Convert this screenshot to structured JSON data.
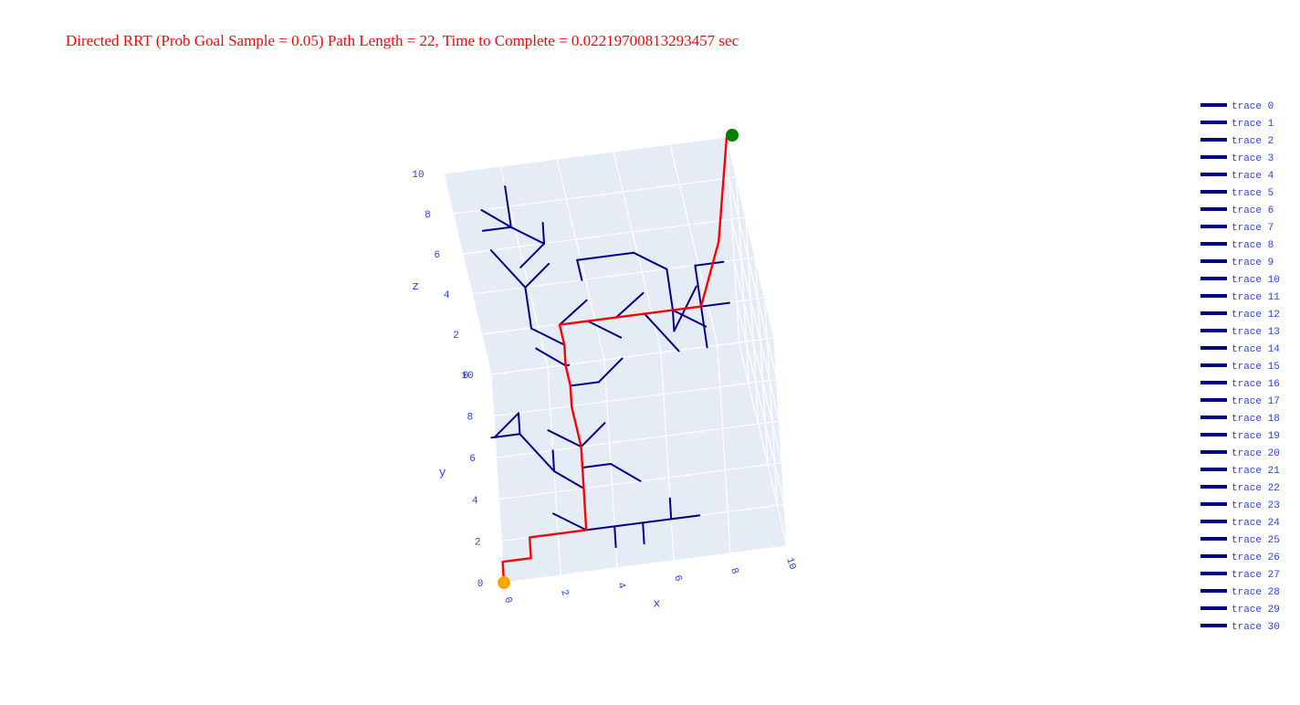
{
  "chart_data": {
    "type": "line3d",
    "title": "Directed RRT (Prob Goal Sample = 0.05) Path Length = 22, Time to Complete = 0.02219700813293457 sec",
    "axes": {
      "x": {
        "label": "x",
        "range": [
          0,
          10
        ],
        "ticks": [
          "0",
          "2",
          "4",
          "6",
          "8",
          "10"
        ]
      },
      "y": {
        "label": "y",
        "range": [
          0,
          10
        ],
        "ticks": [
          "0",
          "2",
          "4",
          "6",
          "8",
          "10"
        ]
      },
      "z": {
        "label": "z",
        "range": [
          0,
          10
        ],
        "ticks": [
          "0",
          "2",
          "4",
          "6",
          "8",
          "10"
        ]
      }
    },
    "start": {
      "x": 0,
      "y": 0,
      "z": 0,
      "color": "#ffa500"
    },
    "goal": {
      "x": 10,
      "y": 10,
      "z": 10,
      "color": "#008000"
    },
    "tree_color": "#00008b",
    "path_color": "#ff0000",
    "path": [
      [
        0,
        0,
        0
      ],
      [
        0,
        1,
        0
      ],
      [
        1,
        1,
        0
      ],
      [
        1,
        2,
        0
      ],
      [
        2,
        2,
        0
      ],
      [
        3,
        2,
        0
      ],
      [
        3,
        3,
        0
      ],
      [
        3,
        4,
        0
      ],
      [
        3,
        5,
        0
      ],
      [
        3,
        6,
        0
      ],
      [
        3,
        6,
        1
      ],
      [
        3,
        6,
        2
      ],
      [
        3,
        7,
        2
      ],
      [
        3,
        7,
        3
      ],
      [
        3,
        8,
        3
      ],
      [
        3,
        8,
        4
      ],
      [
        4,
        8,
        4
      ],
      [
        5,
        8,
        4
      ],
      [
        6,
        8,
        4
      ],
      [
        7,
        8,
        4
      ],
      [
        8,
        8,
        4
      ],
      [
        9,
        9,
        6
      ],
      [
        10,
        10,
        10
      ]
    ],
    "tree_segments": [
      [
        [
          3,
          2,
          0
        ],
        [
          4,
          2,
          0
        ]
      ],
      [
        [
          4,
          2,
          0
        ],
        [
          5,
          2,
          0
        ]
      ],
      [
        [
          5,
          2,
          0
        ],
        [
          6,
          2,
          0
        ]
      ],
      [
        [
          5,
          2,
          0
        ],
        [
          5,
          1,
          0
        ]
      ],
      [
        [
          6,
          2,
          0
        ],
        [
          7,
          2,
          0
        ]
      ],
      [
        [
          6,
          2,
          0
        ],
        [
          6,
          3,
          0
        ]
      ],
      [
        [
          3,
          2,
          0
        ],
        [
          2,
          2,
          1
        ]
      ],
      [
        [
          4,
          2,
          0
        ],
        [
          4,
          1,
          0
        ]
      ],
      [
        [
          3,
          4,
          0
        ],
        [
          2,
          5,
          0
        ]
      ],
      [
        [
          2,
          5,
          0
        ],
        [
          1,
          6,
          1
        ]
      ],
      [
        [
          1,
          6,
          1
        ],
        [
          1,
          7,
          1
        ]
      ],
      [
        [
          1,
          7,
          1
        ],
        [
          0,
          7,
          0
        ]
      ],
      [
        [
          1,
          6,
          1
        ],
        [
          0,
          6,
          1
        ]
      ],
      [
        [
          2,
          5,
          0
        ],
        [
          2,
          6,
          0
        ]
      ],
      [
        [
          3,
          5,
          0
        ],
        [
          4,
          5,
          0
        ]
      ],
      [
        [
          4,
          5,
          0
        ],
        [
          5,
          4,
          0
        ]
      ],
      [
        [
          3,
          5,
          0
        ],
        [
          3,
          6,
          0
        ]
      ],
      [
        [
          3,
          6,
          0
        ],
        [
          2,
          6,
          1
        ]
      ],
      [
        [
          3,
          6,
          0
        ],
        [
          4,
          6,
          1
        ]
      ],
      [
        [
          3,
          7,
          2
        ],
        [
          4,
          7,
          2
        ]
      ],
      [
        [
          4,
          7,
          2
        ],
        [
          5,
          7,
          3
        ]
      ],
      [
        [
          3,
          7,
          3
        ],
        [
          2,
          8,
          3
        ]
      ],
      [
        [
          3,
          7,
          3
        ],
        [
          3,
          8,
          2
        ]
      ],
      [
        [
          3,
          8,
          4
        ],
        [
          4,
          9,
          4
        ]
      ],
      [
        [
          4,
          8,
          4
        ],
        [
          5,
          8,
          3
        ]
      ],
      [
        [
          5,
          8,
          4
        ],
        [
          6,
          9,
          4
        ]
      ],
      [
        [
          6,
          8,
          4
        ],
        [
          7,
          7,
          3
        ]
      ],
      [
        [
          7,
          8,
          4
        ],
        [
          7,
          9,
          5
        ]
      ],
      [
        [
          7,
          8,
          4
        ],
        [
          8,
          8,
          3
        ]
      ],
      [
        [
          8,
          8,
          4
        ],
        [
          8,
          9,
          5
        ]
      ],
      [
        [
          8,
          8,
          4
        ],
        [
          9,
          8,
          4
        ]
      ],
      [
        [
          8,
          8,
          4
        ],
        [
          8,
          7,
          3
        ]
      ],
      [
        [
          8,
          9,
          5
        ],
        [
          9,
          9,
          5
        ]
      ],
      [
        [
          3,
          8,
          3
        ],
        [
          2,
          8,
          4
        ]
      ],
      [
        [
          2,
          8,
          4
        ],
        [
          2,
          9,
          5
        ]
      ],
      [
        [
          2,
          9,
          5
        ],
        [
          3,
          9,
          6
        ]
      ],
      [
        [
          2,
          9,
          5
        ],
        [
          1,
          10,
          6
        ]
      ],
      [
        [
          2,
          9,
          6
        ],
        [
          3,
          9,
          7
        ]
      ],
      [
        [
          3,
          9,
          7
        ],
        [
          3,
          10,
          7
        ]
      ],
      [
        [
          3,
          9,
          7
        ],
        [
          2,
          9,
          8
        ]
      ],
      [
        [
          2,
          9,
          8
        ],
        [
          1,
          9,
          8
        ]
      ],
      [
        [
          2,
          9,
          8
        ],
        [
          1,
          10,
          8
        ]
      ],
      [
        [
          2,
          9,
          8
        ],
        [
          2,
          10,
          9
        ]
      ],
      [
        [
          5,
          9,
          6
        ],
        [
          4,
          9,
          6
        ]
      ],
      [
        [
          4,
          9,
          6
        ],
        [
          4,
          9,
          5
        ]
      ],
      [
        [
          5,
          9,
          6
        ],
        [
          6,
          9,
          6
        ]
      ],
      [
        [
          6,
          9,
          6
        ],
        [
          7,
          9,
          5
        ]
      ],
      [
        [
          7,
          8,
          4
        ],
        [
          7,
          7,
          4
        ]
      ],
      [
        [
          7,
          7,
          4
        ],
        [
          8,
          8,
          5
        ]
      ]
    ],
    "legend": {
      "position": "right",
      "entries": [
        "trace 0",
        "trace 1",
        "trace 2",
        "trace 3",
        "trace 4",
        "trace 5",
        "trace 6",
        "trace 7",
        "trace 8",
        "trace 9",
        "trace 10",
        "trace 11",
        "trace 12",
        "trace 13",
        "trace 14",
        "trace 15",
        "trace 16",
        "trace 17",
        "trace 18",
        "trace 19",
        "trace 20",
        "trace 21",
        "trace 22",
        "trace 23",
        "trace 24",
        "trace 25",
        "trace 26",
        "trace 27",
        "trace 28",
        "trace 29",
        "trace 30"
      ]
    }
  }
}
